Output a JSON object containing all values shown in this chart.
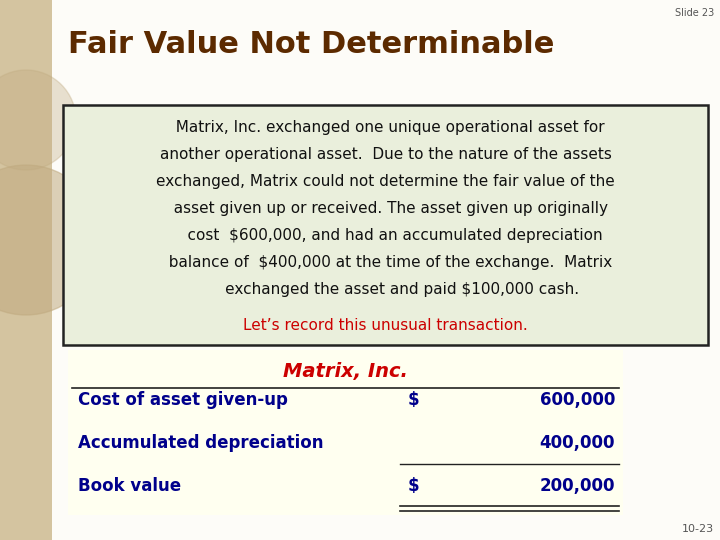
{
  "slide_number": "Slide 23",
  "page_number": "10-23",
  "title": "Fair Value Not Determinable",
  "title_color": "#5C2A00",
  "title_fontsize": 22,
  "background_color": "#F5F5F0",
  "left_bar_color": "#D4C4A0",
  "text_box_bg": "#EAEFDC",
  "text_box_border": "#222222",
  "body_lines": [
    "  Matrix, Inc. exchanged one unique operational asset for",
    "another operational asset.  Due to the nature of the assets",
    "exchanged, Matrix could not determine the fair value of the",
    "  asset given up or received. The asset given up originally",
    "    cost  $600,000, and had an accumulated depreciation",
    "  balance of  $400,000 at the time of the exchange.  Matrix",
    "       exchanged the asset and paid $100,000 cash."
  ],
  "body_text_color": "#111111",
  "body_fontsize": 11,
  "highlight_text": "Let’s record this unusual transaction.",
  "highlight_text_color": "#CC0000",
  "table_bg": "#FFFFF0",
  "table_header": "Matrix, Inc.",
  "table_header_color": "#CC0000",
  "table_header_fontsize": 14,
  "table_rows": [
    {
      "label": "Cost of asset given-up",
      "symbol": "$",
      "value": "600,000"
    },
    {
      "label": "Accumulated depreciation",
      "symbol": "",
      "value": "400,000"
    },
    {
      "label": "Book value",
      "symbol": "$",
      "value": "200,000"
    }
  ],
  "table_text_color": "#00008B",
  "table_fontsize": 12,
  "circle_color": "#C8B888"
}
